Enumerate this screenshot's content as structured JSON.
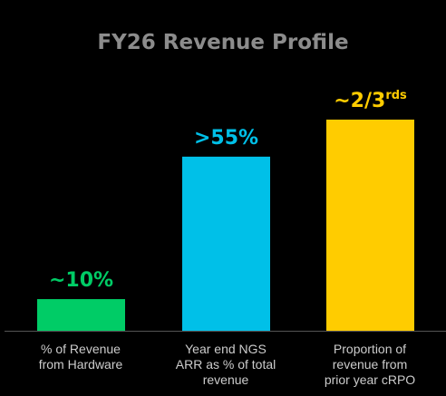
{
  "chart_data": {
    "type": "bar",
    "title": "FY26 Revenue Profile",
    "categories": [
      "% of Revenue from Hardware",
      "Year end NGS ARR as % of total revenue",
      "Proportion of revenue from prior year cRPO"
    ],
    "category_lines": [
      [
        "% of Revenue",
        "from Hardware"
      ],
      [
        "Year end NGS",
        "ARR as % of total",
        "revenue"
      ],
      [
        "Proportion of",
        "revenue from",
        "prior year cRPO"
      ]
    ],
    "values": [
      10,
      55,
      66.7
    ],
    "data_labels": [
      {
        "main": "~10%",
        "sup": ""
      },
      {
        "main": ">55%",
        "sup": ""
      },
      {
        "main": "~2/3",
        "sup": "rds"
      }
    ],
    "ylim": [
      0,
      70
    ],
    "xlabel": "",
    "ylabel": "",
    "grid": false,
    "colors": [
      "#00cc66",
      "#00c0e8",
      "#ffcc00"
    ],
    "label_color": "#cccccc",
    "axis_color": "#555555",
    "title_color": "#8c8c8c"
  }
}
